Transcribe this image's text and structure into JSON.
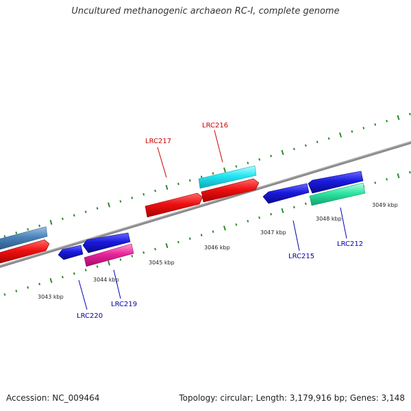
{
  "title": "Uncultured methanogenic archaeon RC-I, complete genome",
  "accession": "Accession: NC_009464",
  "summary": "Topology: circular; Length: 3,179,916 bp; Genes: 3,148",
  "scale_labels": [
    "3043 kbp",
    "3044 kbp",
    "3045 kbp",
    "3046 kbp",
    "3047 kbp",
    "3048 kbp",
    "3049 kbp"
  ],
  "gene_labels": {
    "lrc217": "LRC217",
    "lrc216": "LRC216",
    "lrc215": "LRC215",
    "lrc212": "LRC212",
    "lrc219": "LRC219",
    "lrc220": "LRC220"
  },
  "colors": {
    "backbone": "#808080",
    "tick": "#2a8a2a",
    "forward_label": "#cc0000",
    "reverse_label": "#0000aa",
    "red": "#ee1111",
    "blue": "#1a1adf",
    "cyan": "#22e6f2",
    "steelblue": "#4a82b8",
    "magenta": "#e8239a",
    "seagreen": "#2ee6a0"
  }
}
